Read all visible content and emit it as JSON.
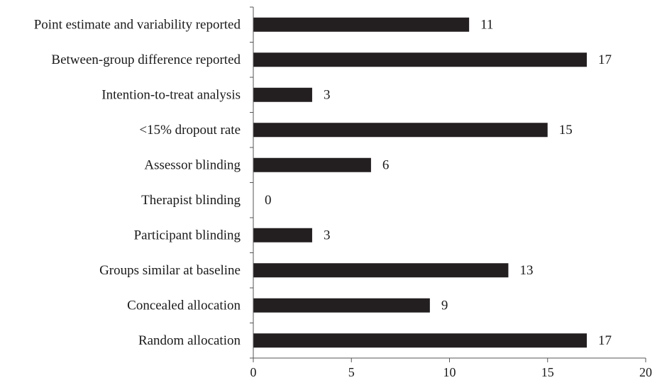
{
  "chart_data": {
    "type": "bar",
    "orientation": "horizontal",
    "categories": [
      "Point estimate and variability reported",
      "Between-group difference reported",
      "Intention-to-treat analysis",
      "<15% dropout rate",
      "Assessor blinding",
      "Therapist blinding",
      "Participant blinding",
      "Groups similar at baseline",
      "Concealed allocation",
      "Random allocation"
    ],
    "values": [
      11,
      17,
      3,
      15,
      6,
      0,
      3,
      13,
      9,
      17
    ],
    "value_labels": [
      "11",
      "17",
      "3",
      "15",
      "6",
      "0",
      "3",
      "13",
      "9",
      "17"
    ],
    "xlim": [
      0,
      20
    ],
    "xticks": [
      0,
      5,
      10,
      15,
      20
    ],
    "xtick_labels": [
      "0",
      "5",
      "10",
      "15",
      "20"
    ],
    "title": "",
    "xlabel": "",
    "ylabel": "",
    "grid": false,
    "legend": "none",
    "colors": {
      "bar": "#231f20",
      "axis": "#555555",
      "text": "#1a1a1a"
    }
  }
}
